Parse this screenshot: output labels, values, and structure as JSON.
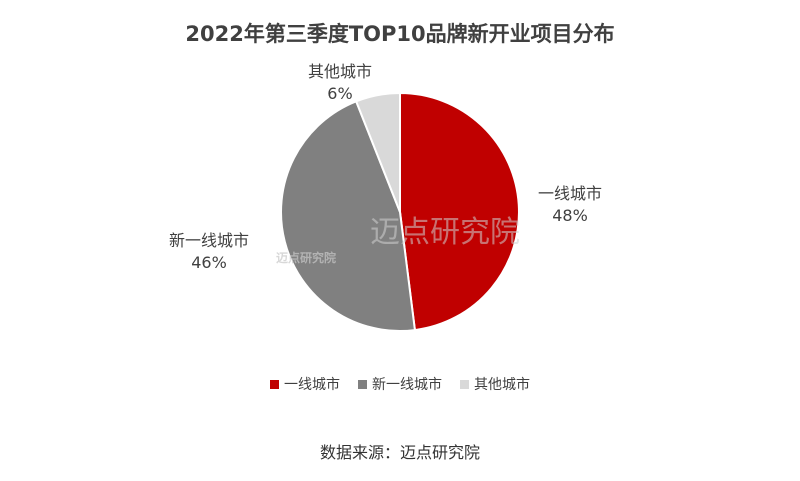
{
  "chart_data": {
    "type": "pie",
    "title": "2022年第三季度TOP10品牌新开业项目分布",
    "categories": [
      "一线城市",
      "新一线城市",
      "其他城市"
    ],
    "values": [
      48,
      46,
      6
    ],
    "value_labels": [
      "48%",
      "46%",
      "6%"
    ],
    "colors": [
      "#c00000",
      "#808080",
      "#d9d9d9"
    ],
    "legend_position": "bottom"
  },
  "watermark": {
    "text": "迈点研究院"
  },
  "source": "数据来源：迈点研究院"
}
